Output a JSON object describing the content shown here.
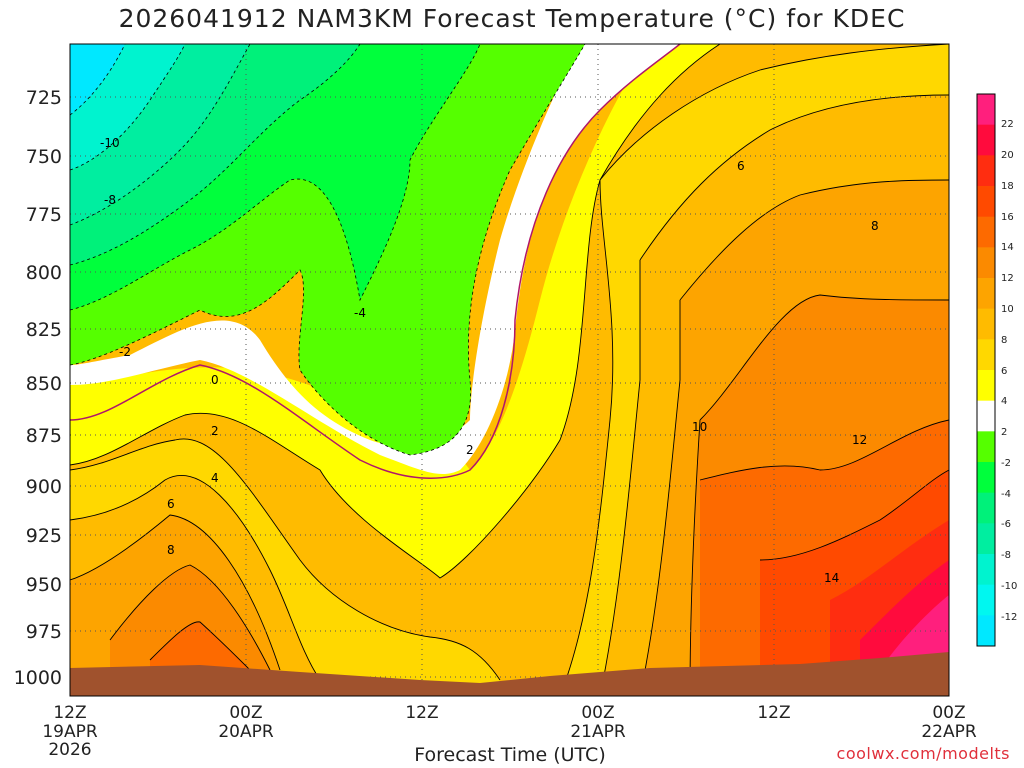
{
  "chart_data": {
    "type": "heatmap",
    "title": "2026041912 NAM3KM Forecast Temperature (°C) for KDEC",
    "xlabel": "Forecast Time (UTC)",
    "ylabel": "",
    "credit": "coolwx.com/modelts",
    "y_axis": {
      "scale": "pressure (inverted)",
      "range": [
        1008,
        703
      ],
      "ticks": [
        "725",
        "750",
        "775",
        "800",
        "825",
        "850",
        "875",
        "900",
        "925",
        "950",
        "975",
        "1000"
      ]
    },
    "x_axis": {
      "ticks": [
        {
          "line1": "12Z",
          "line2": "19APR",
          "line3": "2026"
        },
        {
          "line1": "00Z",
          "line2": "20APR",
          "line3": ""
        },
        {
          "line1": "12Z",
          "line2": "",
          "line3": ""
        },
        {
          "line1": "00Z",
          "line2": "21APR",
          "line3": ""
        },
        {
          "line1": "12Z",
          "line2": "",
          "line3": ""
        },
        {
          "line1": "00Z",
          "line2": "22APR",
          "line3": ""
        }
      ]
    },
    "colorbar": {
      "ticks": [
        "22",
        "20",
        "18",
        "16",
        "14",
        "12",
        "10",
        "8",
        "6",
        "4",
        "2",
        "-2",
        "-4",
        "-6",
        "-8",
        "-10",
        "-12"
      ],
      "colors": [
        "#ff1f7d",
        "#ff0b3d",
        "#ff2d10",
        "#ff4a00",
        "#fd6a00",
        "#fb8a00",
        "#fda400",
        "#ffbb00",
        "#ffd800",
        "#ffff00",
        "#ffffff",
        "#55ff00",
        "#00ff3c",
        "#00f17a",
        "#00eea0",
        "#00f3cf",
        "#00f7f0",
        "#00e8ff"
      ]
    },
    "contour_labels": [
      "-10",
      "-8",
      "-4",
      "-2",
      "0",
      "2",
      "2",
      "4",
      "6",
      "8",
      "6",
      "8",
      "10",
      "12",
      "14"
    ],
    "grid": true,
    "ground_color": "#a0522d",
    "key_colors": {
      "freezing_line": "#b0166a",
      "cold_fill": "#55ff00",
      "warm_fill": "#ffbb00"
    }
  }
}
